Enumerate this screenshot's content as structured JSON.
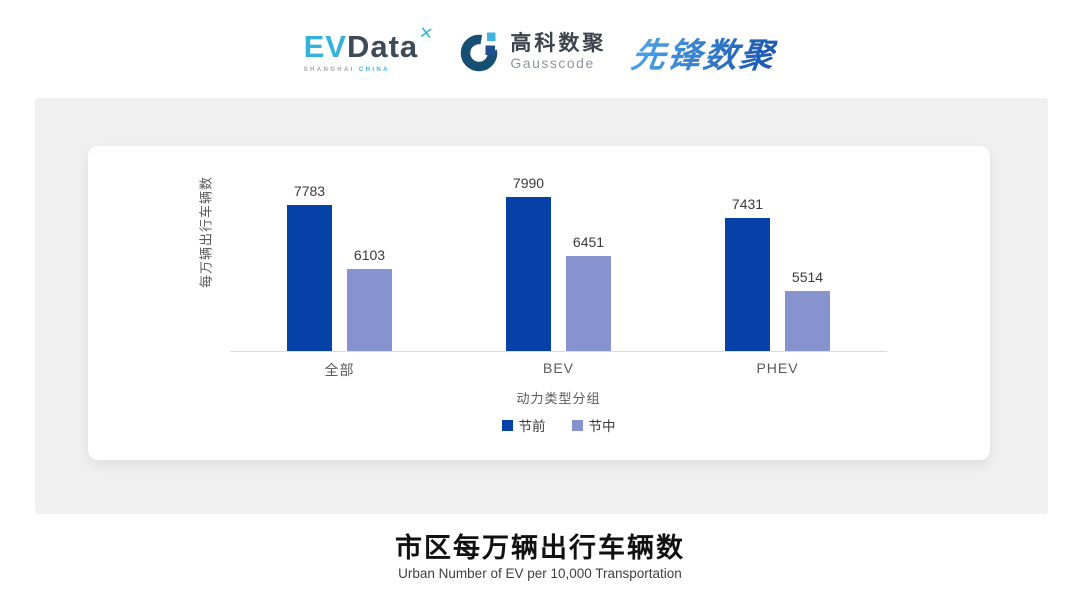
{
  "header": {
    "evdata": {
      "ev": "EV",
      "data": "Data",
      "star": "✕",
      "sub_left": "SHANGHAI",
      "sub_right": "CHINA"
    },
    "gausscode": {
      "cn": "高科数聚",
      "en": "Gausscode"
    },
    "xianfeng": {
      "text": "先锋数聚"
    }
  },
  "chart_data": {
    "type": "bar",
    "categories": [
      "全部",
      "BEV",
      "PHEV"
    ],
    "series": [
      {
        "name": "节前",
        "color": "#0641a8",
        "values": [
          7783,
          7990,
          7431
        ]
      },
      {
        "name": "节中",
        "color": "#8793ce",
        "values": [
          6103,
          6451,
          5514
        ]
      }
    ],
    "title": "市区每万辆出行车辆数",
    "subtitle": "Urban Number of EV per 10,000 Transportation",
    "xlabel": "动力类型分组",
    "ylabel": "每万辆出行车辆数",
    "ylim": [
      3950,
      8300
    ],
    "grid": false,
    "legend_position": "bottom",
    "value_labels": true
  },
  "colors": {
    "panel_bg": "#f0f0f1",
    "card_bg": "#ffffff",
    "axis_line": "#dcdcdc",
    "label_text": "#595959",
    "value_text": "#3a3a3a",
    "evdata_cyan": "#35b2da",
    "evdata_slate": "#3d4a57",
    "gauss_ring": "#174e74",
    "gauss_square_light": "#40b4dd",
    "gauss_square_dark": "#1d4f91",
    "xianfeng_blue": "#1e5cb4"
  }
}
